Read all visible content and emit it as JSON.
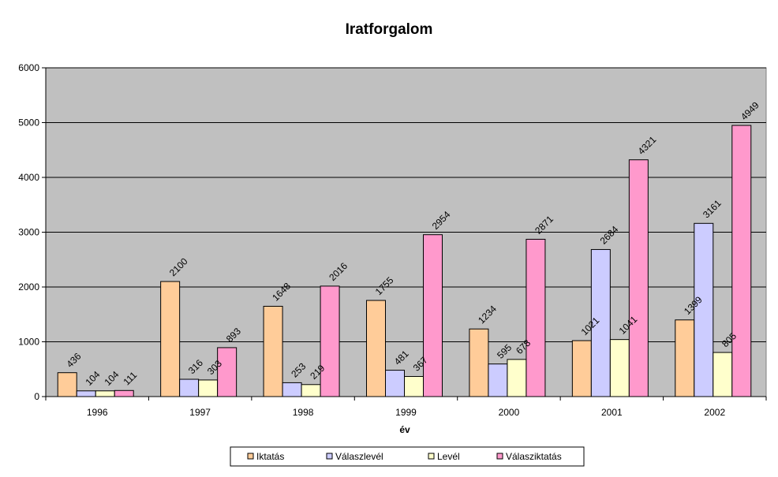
{
  "chart_data": {
    "type": "bar",
    "title": "Iratforgalom",
    "xlabel": "év",
    "ylabel": "",
    "categories": [
      "1996",
      "1997",
      "1998",
      "1999",
      "2000",
      "2001",
      "2002"
    ],
    "ylim": [
      0,
      6000
    ],
    "yticks": [
      "0",
      "1000",
      "2000",
      "3000",
      "4000",
      "5000",
      "6000"
    ],
    "grid": true,
    "legend_position": "bottom",
    "plot_background": "#c0c0c0",
    "series": [
      {
        "name": "Iktatás",
        "color": "#ffcc99",
        "values": [
          436,
          2100,
          1648,
          1755,
          1234,
          1021,
          1399
        ]
      },
      {
        "name": "Válaszlevél",
        "color": "#ccccff",
        "values": [
          104,
          316,
          253,
          481,
          595,
          2684,
          3161
        ]
      },
      {
        "name": "Levél",
        "color": "#ffffcc",
        "values": [
          104,
          303,
          219,
          367,
          678,
          1041,
          805
        ]
      },
      {
        "name": "Válasziktatás",
        "color": "#ff99cc",
        "values": [
          111,
          893,
          2016,
          2954,
          2871,
          4321,
          4949
        ]
      }
    ],
    "data_labels": [
      [
        "436",
        "2100",
        "1648",
        "1755",
        "1234",
        "1021",
        "1399"
      ],
      [
        "104",
        "316",
        "253",
        "481",
        "595",
        "2684",
        "3161"
      ],
      [
        "104",
        "303",
        "219",
        "367",
        "678",
        "1041",
        "805"
      ],
      [
        "111",
        "893",
        "2016",
        "2954",
        "2871",
        "4321",
        "4949"
      ]
    ]
  }
}
